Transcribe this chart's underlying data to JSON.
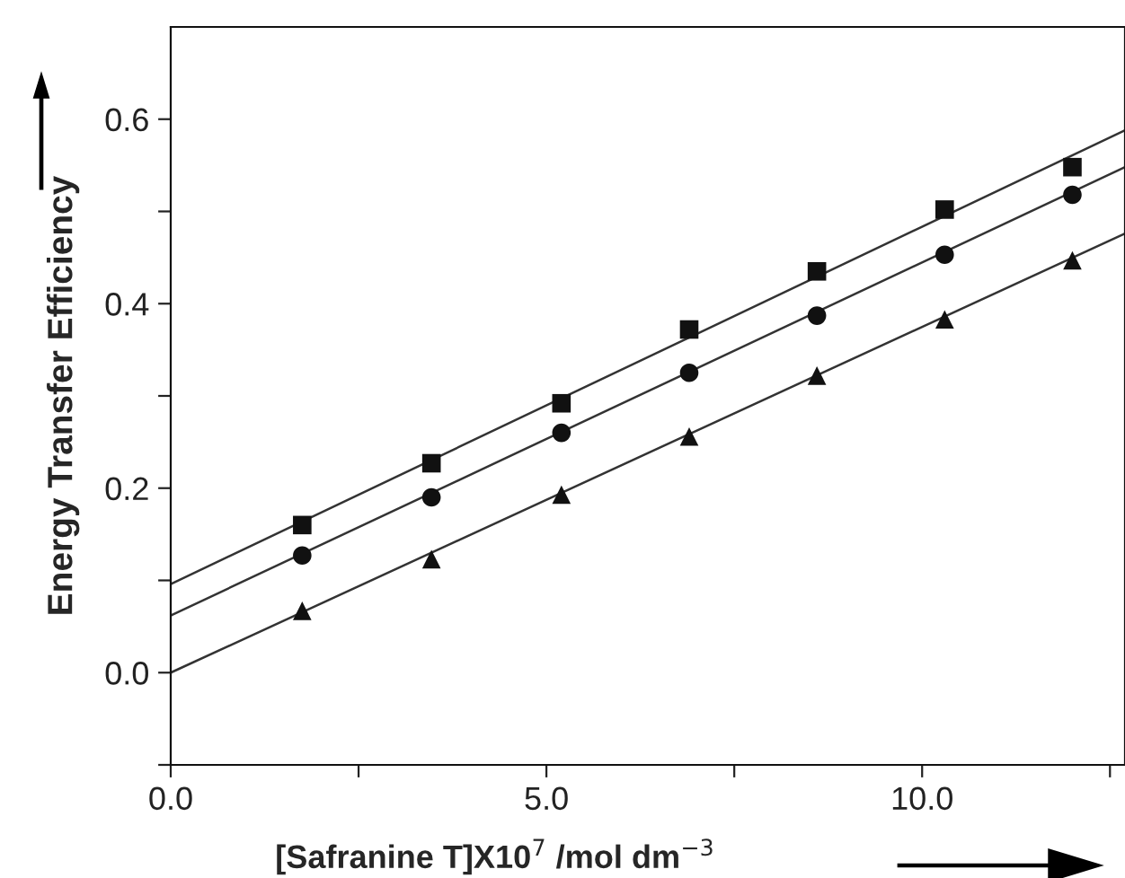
{
  "chart_data": {
    "type": "scatter",
    "xlabel": "[Safranine T]X10$^{7}$ /mol dm$^{−3}$",
    "ylabel": "Energy Transfer Efficiency",
    "xlim": [
      0,
      12.7
    ],
    "ylim": [
      -0.1,
      0.7
    ],
    "xticks": [
      {
        "value": 0,
        "label": "0.0"
      },
      {
        "value": 2.5,
        "label": null
      },
      {
        "value": 5,
        "label": "5.0"
      },
      {
        "value": 7.5,
        "label": null
      },
      {
        "value": 10,
        "label": "10.0"
      },
      {
        "value": 12.5,
        "label": null
      }
    ],
    "yticks": [
      {
        "value": -0.1,
        "label": null
      },
      {
        "value": 0,
        "label": "0.0"
      },
      {
        "value": 0.1,
        "label": null
      },
      {
        "value": 0.2,
        "label": "0.2"
      },
      {
        "value": 0.3,
        "label": null
      },
      {
        "value": 0.4,
        "label": "0.4"
      },
      {
        "value": 0.5,
        "label": null
      },
      {
        "value": 0.6,
        "label": "0.6"
      }
    ],
    "grid": false,
    "legend": false,
    "series": [
      {
        "marker": "square",
        "color": "#111111",
        "x": [
          1.75,
          3.47,
          5.2,
          6.9,
          8.6,
          10.3,
          12.0
        ],
        "values": [
          0.16,
          0.227,
          0.292,
          0.372,
          0.435,
          0.502,
          0.548
        ]
      },
      {
        "marker": "circle",
        "color": "#111111",
        "x": [
          1.75,
          3.47,
          5.2,
          6.9,
          8.6,
          10.3,
          12.0
        ],
        "values": [
          0.127,
          0.19,
          0.26,
          0.325,
          0.387,
          0.453,
          0.518
        ]
      },
      {
        "marker": "triangle",
        "color": "#111111",
        "x": [
          1.75,
          3.47,
          5.2,
          6.9,
          8.6,
          10.3,
          12.0
        ],
        "values": [
          0.067,
          0.123,
          0.193,
          0.256,
          0.322,
          0.383,
          0.447
        ]
      },
      {
        "type": "line",
        "marker": "none",
        "line_style": "solid",
        "color": "#333333",
        "x": [
          0,
          12.7
        ],
        "values": [
          0.096,
          0.588
        ]
      },
      {
        "type": "line",
        "marker": "none",
        "line_style": "solid",
        "color": "#333333",
        "x": [
          0,
          12.7
        ],
        "values": [
          0.062,
          0.548
        ]
      },
      {
        "type": "line",
        "marker": "none",
        "line_style": "solid",
        "color": "#333333",
        "x": [
          0,
          12.7
        ],
        "values": [
          0.0,
          0.476
        ]
      }
    ]
  }
}
